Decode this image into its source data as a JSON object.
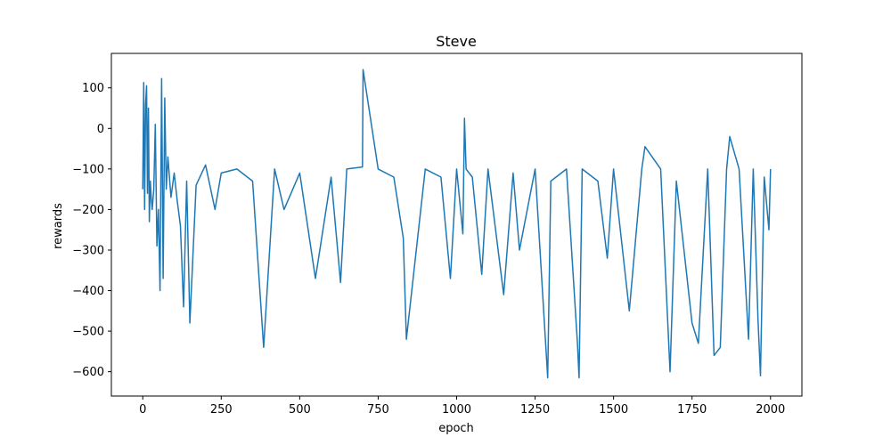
{
  "chart_data": {
    "type": "line",
    "title": "Steve",
    "xlabel": "epoch",
    "ylabel": "rewards",
    "xlim": [
      -100,
      2100
    ],
    "ylim": [
      -660,
      185
    ],
    "xticks": [
      0,
      250,
      500,
      750,
      1000,
      1250,
      1500,
      1750,
      2000
    ],
    "yticks": [
      -600,
      -500,
      -400,
      -300,
      -200,
      -100,
      0,
      100
    ],
    "grid": false,
    "legend": "none",
    "colors": {
      "line": "#1f77b4",
      "axes": "#000000",
      "background": "#ffffff"
    },
    "series": [
      {
        "x": [
          0,
          3,
          6,
          9,
          12,
          15,
          18,
          21,
          24,
          27,
          30,
          35,
          40,
          45,
          50,
          55,
          60,
          65,
          70,
          75,
          80,
          90,
          100,
          110,
          120,
          130,
          140,
          150,
          170,
          200,
          230,
          250,
          300,
          350,
          385,
          420,
          450,
          500,
          550,
          600,
          630,
          650,
          700,
          702,
          750,
          800,
          830,
          840,
          900,
          950,
          980,
          1000,
          1020,
          1025,
          1030,
          1050,
          1080,
          1100,
          1150,
          1180,
          1200,
          1250,
          1290,
          1300,
          1350,
          1385,
          1390,
          1400,
          1450,
          1480,
          1500,
          1550,
          1590,
          1600,
          1650,
          1680,
          1700,
          1750,
          1770,
          1800,
          1820,
          1840,
          1860,
          1870,
          1900,
          1930,
          1945,
          1960,
          1968,
          1980,
          1995,
          2000
        ],
        "y": [
          -150,
          113,
          -200,
          60,
          105,
          -160,
          50,
          -230,
          -130,
          -170,
          -200,
          -150,
          10,
          -290,
          -200,
          -400,
          123,
          -370,
          75,
          -150,
          -70,
          -170,
          -110,
          -180,
          -240,
          -440,
          -130,
          -480,
          -140,
          -90,
          -200,
          -110,
          -100,
          -130,
          -540,
          -100,
          -200,
          -110,
          -370,
          -120,
          -380,
          -100,
          -95,
          145,
          -100,
          -120,
          -270,
          -520,
          -100,
          -120,
          -370,
          -100,
          -260,
          25,
          -100,
          -120,
          -360,
          -100,
          -410,
          -110,
          -300,
          -100,
          -615,
          -130,
          -100,
          -530,
          -615,
          -100,
          -130,
          -320,
          -100,
          -450,
          -100,
          -45,
          -100,
          -600,
          -130,
          -480,
          -530,
          -100,
          -560,
          -540,
          -100,
          -20,
          -100,
          -520,
          -100,
          -470,
          -610,
          -120,
          -250,
          -100
        ]
      }
    ]
  }
}
